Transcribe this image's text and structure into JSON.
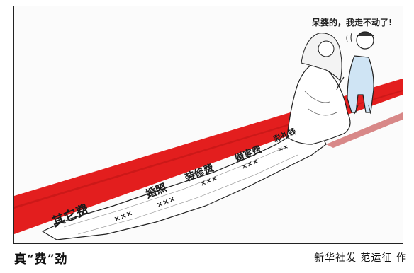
{
  "cartoon": {
    "speech": "呆婆的，我走不动了!",
    "train_text": [
      "其它费",
      "婚照",
      "装修费",
      "婚宴费",
      "彩礼钱"
    ],
    "marks_row": [
      "×××",
      "×××",
      "×××",
      "×××",
      "××"
    ]
  },
  "caption": {
    "title": "真“费”劲",
    "credit": "新华社发 范运征 作"
  },
  "colors": {
    "carpet": "#e31e1e",
    "ink": "#1a1a1a"
  }
}
